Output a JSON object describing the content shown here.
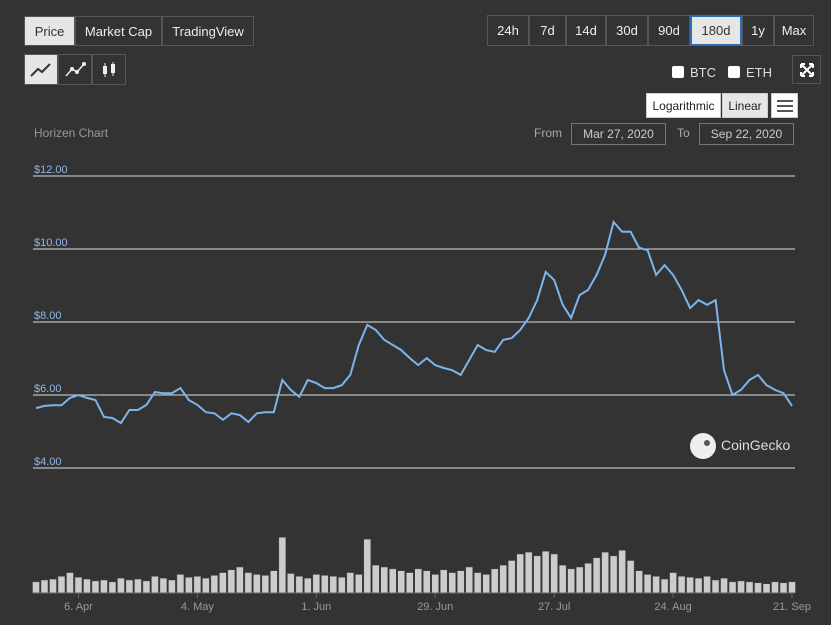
{
  "ui": {
    "tabs": [
      "Price",
      "Market Cap",
      "TradingView"
    ],
    "ranges": [
      "24h",
      "7d",
      "14d",
      "30d",
      "90d",
      "180d",
      "1y",
      "Max"
    ],
    "checks": [
      "BTC",
      "ETH"
    ],
    "scale_buttons": [
      "Logarithmic",
      "Linear"
    ],
    "from_label": "From",
    "from_date": "Mar 27, 2020",
    "to_label": "To",
    "to_date": "Sep 22, 2020",
    "watermark": "CoinGecko"
  },
  "chart_data": {
    "type": "line",
    "title": "Horizen Chart",
    "categories": [
      null,
      null,
      null,
      null,
      null,
      "6. Apr",
      null,
      null,
      null,
      null,
      null,
      null,
      null,
      null,
      null,
      null,
      null,
      null,
      null,
      "4. May",
      null,
      null,
      null,
      null,
      null,
      null,
      null,
      null,
      null,
      null,
      null,
      null,
      null,
      "1. Jun",
      null,
      null,
      null,
      null,
      null,
      null,
      null,
      null,
      null,
      null,
      null,
      null,
      null,
      "29. Jun",
      null,
      null,
      null,
      null,
      null,
      null,
      null,
      null,
      null,
      null,
      null,
      null,
      null,
      "27. Jul",
      null,
      null,
      null,
      null,
      null,
      null,
      null,
      null,
      null,
      null,
      null,
      null,
      null,
      "24. Aug",
      null,
      null,
      null,
      null,
      null,
      null,
      null,
      null,
      null,
      null,
      null,
      null,
      null,
      "21. Sep"
    ],
    "series": [
      {
        "name": "Price",
        "color": "#7cb5ec",
        "values": [
          5.64,
          5.7,
          5.72,
          5.72,
          5.92,
          6.0,
          5.92,
          5.86,
          5.4,
          5.37,
          5.23,
          5.59,
          5.59,
          5.73,
          6.08,
          6.05,
          6.05,
          6.19,
          5.86,
          5.73,
          5.53,
          5.5,
          5.32,
          5.5,
          5.45,
          5.26,
          5.5,
          5.53,
          5.53,
          6.41,
          6.14,
          5.95,
          6.41,
          6.33,
          6.19,
          6.19,
          6.27,
          6.55,
          7.37,
          7.92,
          7.78,
          7.51,
          7.37,
          7.23,
          7.01,
          6.82,
          7.01,
          6.82,
          6.74,
          6.68,
          6.55,
          6.96,
          7.37,
          7.23,
          7.18,
          7.51,
          7.56,
          7.78,
          8.11,
          8.6,
          9.37,
          9.15,
          8.47,
          8.11,
          8.74,
          8.88,
          9.29,
          9.84,
          10.74,
          10.47,
          10.47,
          10.03,
          9.97,
          9.29,
          9.56,
          9.29,
          8.88,
          8.38,
          8.6,
          8.47,
          8.6,
          6.68,
          6.0,
          6.14,
          6.41,
          6.55,
          6.27,
          6.14,
          6.05,
          5.7
        ]
      }
    ],
    "volume": [
      12,
      14,
      15,
      18,
      22,
      17,
      15,
      13,
      14,
      12,
      16,
      14,
      15,
      13,
      18,
      16,
      14,
      20,
      17,
      18,
      16,
      19,
      22,
      25,
      28,
      22,
      20,
      19,
      24,
      60,
      21,
      18,
      16,
      20,
      19,
      18,
      17,
      22,
      20,
      58,
      30,
      28,
      26,
      24,
      22,
      26,
      24,
      20,
      25,
      22,
      24,
      28,
      22,
      20,
      26,
      30,
      35,
      42,
      44,
      40,
      45,
      42,
      30,
      26,
      28,
      32,
      38,
      44,
      40,
      46,
      35,
      24,
      20,
      18,
      15,
      22,
      18,
      17,
      16,
      18,
      14,
      16,
      12,
      13,
      12,
      11,
      10,
      12,
      11,
      12
    ],
    "volume_lim": [
      0,
      70
    ],
    "ylim": [
      4,
      12
    ],
    "yticks": [
      {
        "value": 4,
        "label": "$4.00"
      },
      {
        "value": 6,
        "label": "$6.00"
      },
      {
        "value": 8,
        "label": "$8.00"
      },
      {
        "value": 10,
        "label": "$10.00"
      },
      {
        "value": 12,
        "label": "$12.00"
      }
    ],
    "grid": true,
    "volume_color": "#cccccc"
  }
}
